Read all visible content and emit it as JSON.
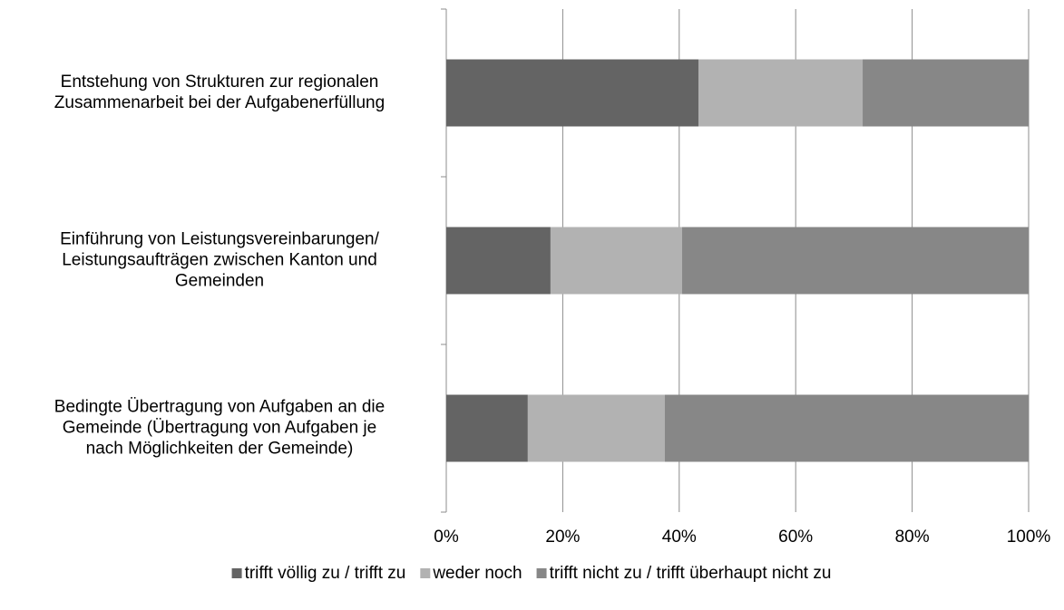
{
  "chart_data": {
    "type": "stacked_bar_horizontal",
    "categories": [
      [
        "Entstehung von Strukturen zur regionalen",
        "Zusammenarbeit bei der Aufgabenerfüllung"
      ],
      [
        "Einführung von Leistungsvereinbarungen/",
        "Leistungsaufträgen zwischen Kanton und",
        "Gemeinden"
      ],
      [
        "Bedingte Übertragung von Aufgaben an die",
        "Gemeinde (Übertragung von Aufgaben je",
        "nach Möglichkeiten der Gemeinde)"
      ]
    ],
    "series": [
      {
        "name": "trifft völlig zu / trifft zu",
        "color": "#646464",
        "values": [
          43.3,
          17.9,
          14.0
        ]
      },
      {
        "name": "weder noch",
        "color": "#b2b2b2",
        "values": [
          28.2,
          22.6,
          23.5
        ]
      },
      {
        "name": "trifft nicht zu / trifft überhaupt nicht zu",
        "color": "#878787",
        "values": [
          28.5,
          59.5,
          62.5
        ]
      }
    ],
    "xlim": [
      0,
      100
    ],
    "xticks": [
      {
        "value": 0,
        "label": "0%"
      },
      {
        "value": 20,
        "label": "20%"
      },
      {
        "value": 40,
        "label": "40%"
      },
      {
        "value": 60,
        "label": "60%"
      },
      {
        "value": 80,
        "label": "80%"
      },
      {
        "value": 100,
        "label": "100%"
      }
    ],
    "grid": true,
    "legend": "bottom"
  }
}
